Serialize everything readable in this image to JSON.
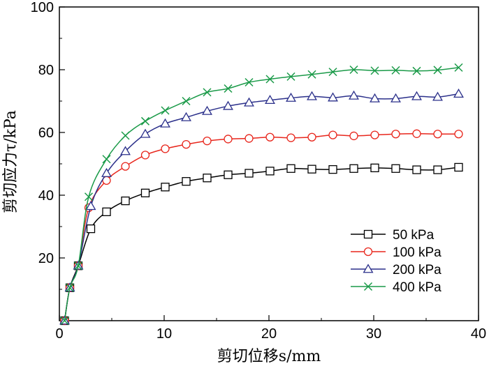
{
  "chart_data": {
    "type": "line",
    "xlabel": "剪切位移s/mm",
    "ylabel": "剪切应力τ/kPa",
    "xlim": [
      0,
      40
    ],
    "ylim": [
      0,
      100
    ],
    "xticks": [
      0,
      10,
      20,
      30,
      40
    ],
    "yticks": [
      20,
      40,
      60,
      80,
      100
    ],
    "grid": false,
    "legend": "lower-right",
    "series": [
      {
        "name": "50 kPa",
        "color": "#000000",
        "marker": "square",
        "x": [
          0.5,
          1.0,
          1.8,
          3.0,
          4.5,
          6.3,
          8.2,
          10.1,
          12.1,
          14.1,
          16.1,
          18.1,
          20.1,
          22.1,
          24.1,
          26.1,
          28.1,
          30.1,
          32.1,
          34.1,
          36.1,
          38.1
        ],
        "y": [
          0,
          10.5,
          17.5,
          29.3,
          34.7,
          38.2,
          40.7,
          42.6,
          44.4,
          45.5,
          46.5,
          47.0,
          47.7,
          48.5,
          48.3,
          48.2,
          48.5,
          48.7,
          48.5,
          48.1,
          48.1,
          48.9
        ]
      },
      {
        "name": "100 kPa",
        "color": "#e8261c",
        "marker": "circle",
        "x": [
          0.5,
          1.0,
          1.8,
          2.8,
          4.5,
          6.3,
          8.2,
          10.1,
          12.1,
          14.1,
          16.1,
          18.1,
          20.1,
          22.1,
          24.1,
          26.1,
          28.1,
          30.1,
          32.1,
          34.1,
          36.1,
          38.1
        ],
        "y": [
          0,
          10.5,
          17.5,
          36.0,
          44.7,
          49.2,
          52.8,
          54.8,
          56.2,
          57.3,
          57.9,
          58.1,
          58.5,
          58.3,
          58.5,
          59.2,
          58.9,
          59.2,
          59.5,
          59.6,
          59.5,
          59.5
        ]
      },
      {
        "name": "200 kPa",
        "color": "#2a2f8a",
        "marker": "triangle",
        "x": [
          0.5,
          1.0,
          1.8,
          3.0,
          4.5,
          6.3,
          8.2,
          10.1,
          12.1,
          14.1,
          16.1,
          18.1,
          20.1,
          22.1,
          24.1,
          26.1,
          28.1,
          30.1,
          32.1,
          34.1,
          36.1,
          38.1
        ],
        "y": [
          0,
          10.5,
          17.5,
          36.5,
          47.0,
          54.0,
          59.5,
          62.8,
          64.8,
          66.8,
          68.4,
          69.5,
          70.3,
          71.0,
          71.5,
          71.1,
          71.7,
          70.8,
          70.8,
          71.5,
          71.3,
          72.3
        ]
      },
      {
        "name": "400 kPa",
        "color": "#1a9a48",
        "marker": "x",
        "x": [
          0.5,
          1.0,
          1.8,
          2.8,
          4.5,
          6.3,
          8.2,
          10.1,
          12.1,
          14.1,
          16.1,
          18.1,
          20.1,
          22.1,
          24.1,
          26.1,
          28.1,
          30.1,
          32.1,
          34.1,
          36.1,
          38.1
        ],
        "y": [
          0,
          10.5,
          17.5,
          39.5,
          51.5,
          59.0,
          63.6,
          67.0,
          70.0,
          72.8,
          74.0,
          76.0,
          77.0,
          77.8,
          78.5,
          79.3,
          80.0,
          79.7,
          79.8,
          79.6,
          79.9,
          80.7
        ]
      }
    ]
  }
}
